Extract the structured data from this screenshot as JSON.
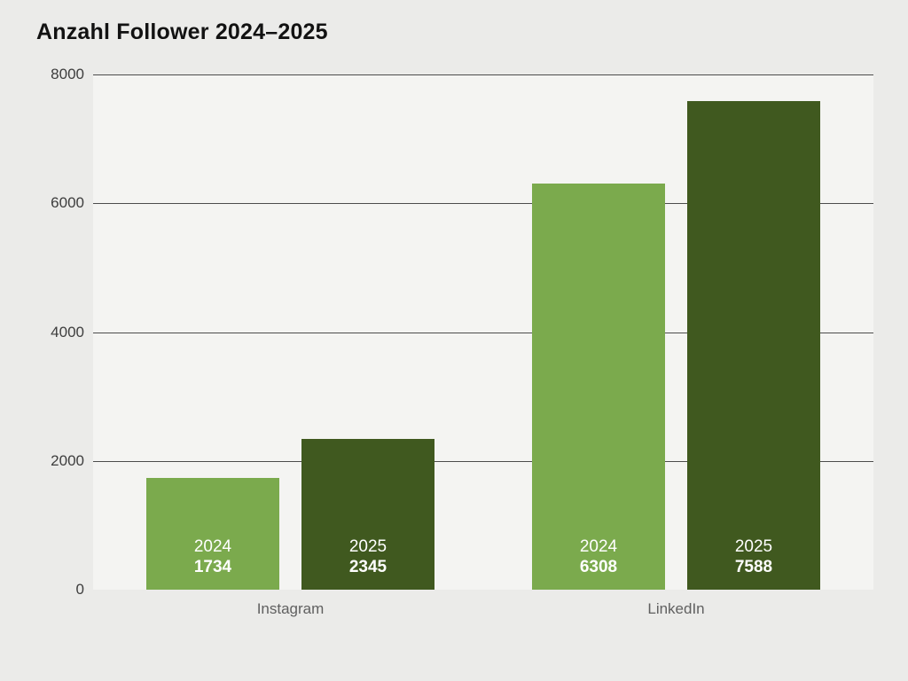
{
  "title": "Anzahl Follower 2024–2025",
  "colors": {
    "series_2024": "#7baa4d",
    "series_2025": "#40591f",
    "page_background": "#ebebe9",
    "plot_background": "#f4f4f2",
    "gridline": "#4c4c4c",
    "tick_text": "#3d3d3d",
    "category_text": "#606060",
    "bar_label_text": "#ffffff"
  },
  "chart_data": {
    "type": "bar",
    "title": "Anzahl Follower 2024–2025",
    "categories": [
      "Instagram",
      "LinkedIn"
    ],
    "series": [
      {
        "name": "2024",
        "values": [
          1734,
          6308
        ]
      },
      {
        "name": "2025",
        "values": [
          2345,
          7588
        ]
      }
    ],
    "xlabel": "",
    "ylabel": "",
    "ylim": [
      0,
      8000
    ],
    "yticks": [
      0,
      2000,
      4000,
      6000,
      8000
    ],
    "grid": true,
    "legend_position": "none",
    "bar_labels": "series name and value shown in white inside bottom of each bar"
  }
}
